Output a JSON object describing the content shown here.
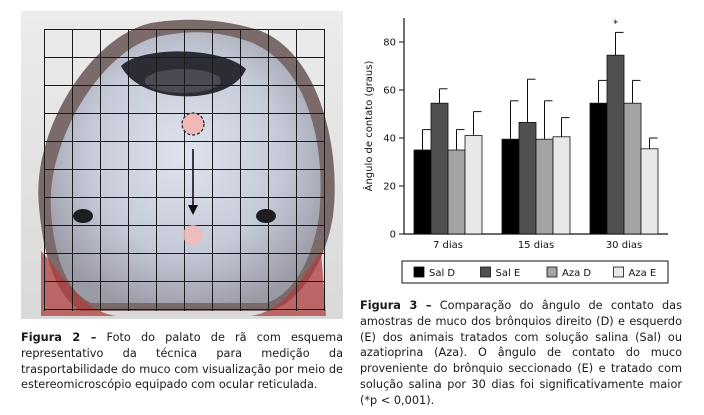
{
  "figure2": {
    "label": "Figura 2 –",
    "caption": "Foto do palato de rã com esquema representativo da técnica para medição da trasportabilidade do muco com visualização por meio de estereomicroscópio equipado com ocular reticulada."
  },
  "figure3": {
    "label": "Figura 3 –",
    "caption": "Comparação do ângulo de contato das amostras de muco dos brônquios direito (D) e esquerdo (E) dos animais tratados com solução salina (Sal) ou azatioprina (Aza). O ângulo de contato do muco proveniente do brônquio seccionado (E) e tratado com solução salina por 30 dias foi significativamente maior (*p < 0,001)."
  },
  "chart_data": {
    "type": "bar",
    "categories": [
      "7 dias",
      "15 dias",
      "30 dias"
    ],
    "ylabel": "Ângulo de contato (graus)",
    "ylim": [
      0,
      90
    ],
    "yticks": [
      0,
      20,
      40,
      60,
      80
    ],
    "legend_position": "bottom",
    "series": [
      {
        "name": "Sal D",
        "color": "#000000",
        "values": [
          35,
          39.5,
          54.5
        ],
        "errors": [
          8.5,
          16,
          9.5
        ]
      },
      {
        "name": "Sal E",
        "color": "#505050",
        "values": [
          54.5,
          46.5,
          74.5
        ],
        "errors": [
          6,
          18,
          9.5
        ]
      },
      {
        "name": "Aza D",
        "color": "#a3a3a3",
        "values": [
          35,
          39.5,
          54.5
        ],
        "errors": [
          8.5,
          16,
          9.5
        ]
      },
      {
        "name": "Aza E",
        "color": "#e8e8e8",
        "values": [
          41,
          40.5,
          35.5
        ],
        "errors": [
          10,
          8,
          4.5
        ]
      }
    ],
    "annotations": [
      {
        "category": "30 dias",
        "series": "Sal E",
        "text": "*"
      }
    ]
  }
}
